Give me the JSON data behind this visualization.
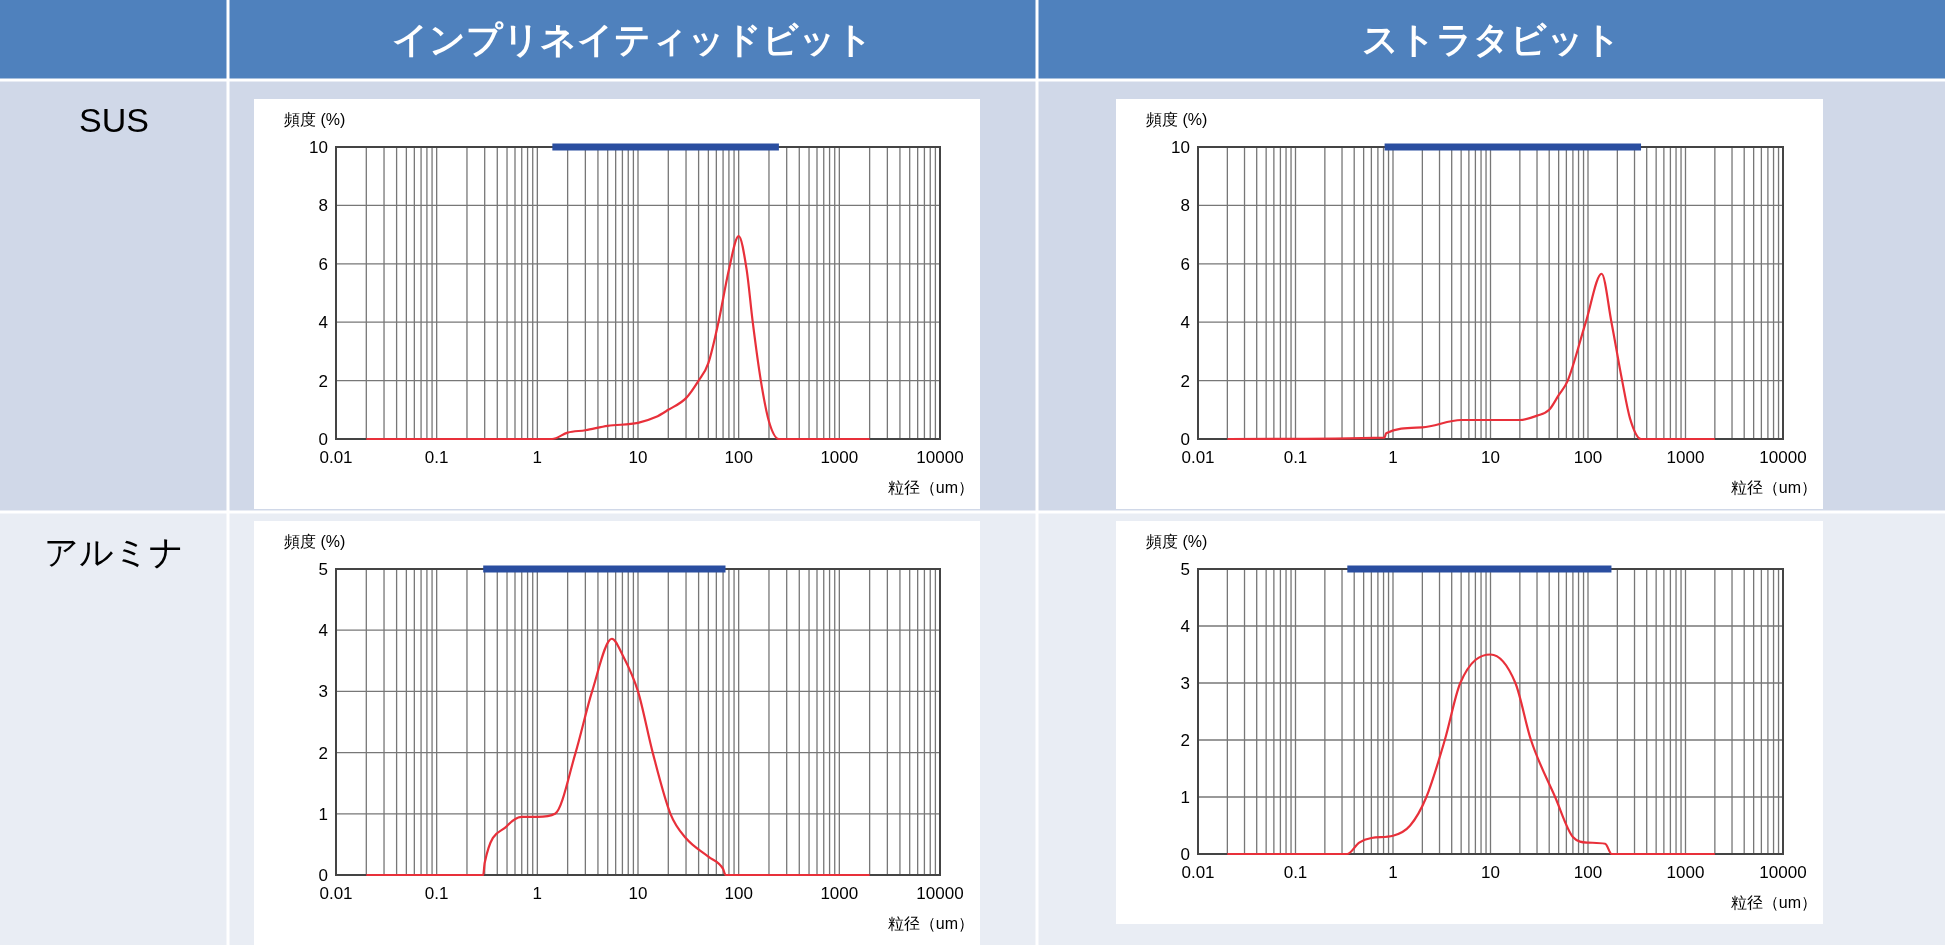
{
  "chart_data": [
    {
      "type": "line",
      "title": "インプリネイティッドビット",
      "subtitle": "SUS",
      "xlabel": "粒径（um）",
      "ylabel": "頻度 (%)",
      "log": "x",
      "grid": true,
      "xlim": [
        0.01,
        10000
      ],
      "ylim": [
        0,
        10
      ],
      "xticks": [
        0.01,
        0.1,
        1,
        10,
        100,
        1000,
        10000
      ],
      "yticks": [
        0,
        2,
        4,
        6,
        8,
        10
      ],
      "series": [
        {
          "color": "#2a4ea0",
          "x": [
            1.41,
            251
          ],
          "values": [
            10,
            10
          ]
        },
        {
          "color": "#e8303a",
          "x": [
            0.02,
            1.4,
            2,
            3,
            5,
            10,
            15,
            20,
            30,
            40,
            50,
            63,
            80,
            100,
            120,
            138,
            166,
            200,
            251,
            2000
          ],
          "values": [
            0,
            0,
            0.22,
            0.3,
            0.45,
            0.55,
            0.75,
            1.0,
            1.4,
            2.0,
            2.6,
            4.0,
            5.8,
            6.95,
            5.8,
            4.0,
            2.0,
            0.6,
            0,
            0
          ]
        }
      ]
    },
    {
      "type": "line",
      "title": "ストラタビット",
      "xlabel": "粒径（um）",
      "ylabel": "頻度 (%)",
      "log": "x",
      "grid": true,
      "xlim": [
        0.01,
        10000
      ],
      "ylim": [
        0,
        10
      ],
      "xticks": [
        0.01,
        0.1,
        1,
        10,
        100,
        1000,
        10000
      ],
      "yticks": [
        0,
        2,
        4,
        6,
        8,
        10
      ],
      "series": [
        {
          "color": "#2a4ea0",
          "x": [
            0.82,
            350
          ],
          "values": [
            10,
            10
          ]
        },
        {
          "color": "#e8303a",
          "x": [
            0.02,
            0.82,
            0.85,
            2,
            5,
            10,
            20,
            30,
            40,
            50,
            62,
            95,
            138,
            174,
            224,
            270,
            350,
            2000
          ],
          "values": [
            0,
            0.05,
            0.2,
            0.4,
            0.65,
            0.65,
            0.65,
            0.8,
            1.0,
            1.5,
            2.0,
            4.0,
            5.66,
            4.0,
            2.0,
            0.7,
            0,
            0
          ]
        }
      ]
    },
    {
      "type": "line",
      "subtitle": "アルミナ",
      "xlabel": "粒径（um）",
      "ylabel": "頻度 (%)",
      "log": "x",
      "grid": true,
      "xlim": [
        0.01,
        10000
      ],
      "ylim": [
        0,
        5
      ],
      "xticks": [
        0.01,
        0.1,
        1,
        10,
        100,
        1000,
        10000
      ],
      "yticks": [
        0,
        1,
        2,
        3,
        4,
        5
      ],
      "series": [
        {
          "color": "#2a4ea0",
          "x": [
            0.29,
            74
          ],
          "values": [
            5,
            5
          ]
        },
        {
          "color": "#e8303a",
          "x": [
            0.02,
            0.29,
            0.3,
            0.5,
            0.7,
            1.0,
            1.5,
            2.4,
            3.5,
            5.5,
            7,
            10,
            14,
            21,
            30,
            50,
            70,
            74,
            2000
          ],
          "values": [
            0,
            0,
            0.2,
            0.8,
            0.95,
            0.95,
            1.0,
            2.0,
            3.0,
            3.86,
            3.6,
            3.0,
            2.0,
            1.0,
            0.6,
            0.3,
            0.1,
            0,
            0
          ]
        }
      ]
    },
    {
      "type": "line",
      "xlabel": "粒径（um）",
      "ylabel": "頻度 (%)",
      "log": "x",
      "grid": true,
      "xlim": [
        0.01,
        10000
      ],
      "ylim": [
        0,
        5
      ],
      "xticks": [
        0.01,
        0.1,
        1,
        10,
        100,
        1000,
        10000
      ],
      "yticks": [
        0,
        1,
        2,
        3,
        4,
        5
      ],
      "series": [
        {
          "color": "#2a4ea0",
          "x": [
            0.34,
            174
          ],
          "values": [
            5,
            5
          ]
        },
        {
          "color": "#e8303a",
          "x": [
            0.02,
            0.34,
            0.45,
            0.6,
            1,
            1.5,
            2.2,
            3.4,
            4.9,
            10,
            18,
            26,
            46,
            70,
            100,
            150,
            175,
            2000
          ],
          "values": [
            0,
            0,
            0.2,
            0.28,
            0.32,
            0.5,
            1.0,
            2.0,
            3.0,
            3.5,
            3.0,
            2.0,
            1.0,
            0.3,
            0.2,
            0.18,
            0,
            0
          ]
        }
      ]
    }
  ]
}
